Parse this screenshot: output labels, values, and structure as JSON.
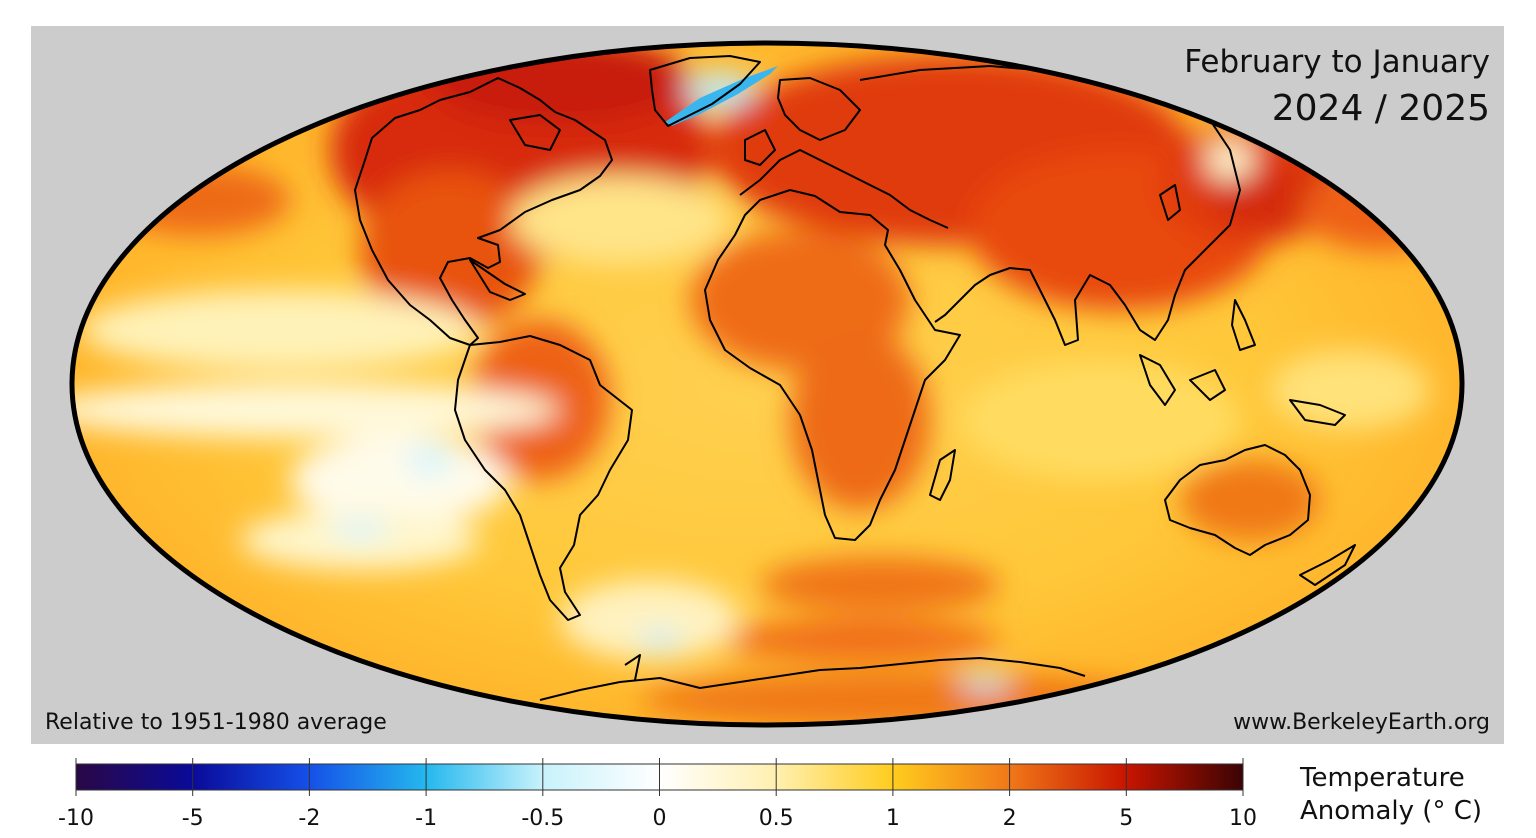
{
  "map": {
    "title_line1": "February to January",
    "title_line2": "2024 / 2025",
    "baseline_note": "Relative to 1951-1980 average",
    "source": "www.BerkeleyEarth.org",
    "projection": "mollweide",
    "ocean_background": "#cccccc",
    "coastline_color": "#000000"
  },
  "legend": {
    "title_line1": "Temperature",
    "title_line2": "Anomaly (° C)",
    "ticks": [
      "-10",
      "-5",
      "-2",
      "-1",
      "-0.5",
      "0",
      "0.5",
      "1",
      "2",
      "5",
      "10"
    ],
    "colors": [
      "#2a0845",
      "#0a0a9a",
      "#1550e8",
      "#24b8ee",
      "#c8f2fb",
      "#ffffff",
      "#fff0b0",
      "#ffcc1e",
      "#f07818",
      "#c81400",
      "#3a0404"
    ]
  }
}
